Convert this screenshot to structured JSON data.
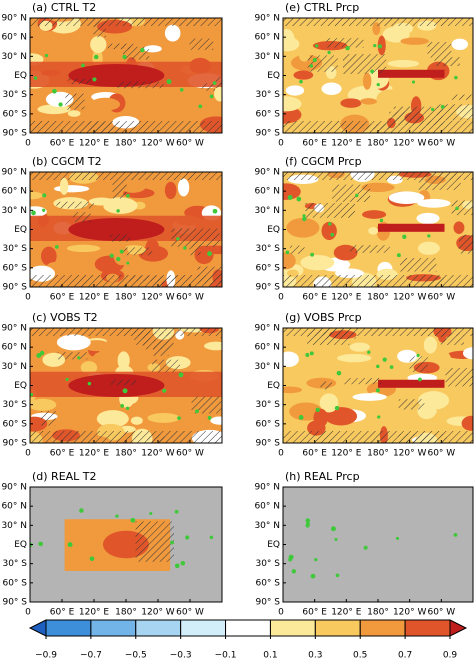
{
  "panels": [
    {
      "title": "(a) CTRL T2"
    },
    {
      "title": "(e) CTRL Prcp"
    },
    {
      "title": "(b) CGCM T2"
    },
    {
      "title": "(f) CGCM Prcp"
    },
    {
      "title": "(c) VOBS T2"
    },
    {
      "title": "(g) VOBS Prcp"
    },
    {
      "title": "(d) REAL T2"
    },
    {
      "title": "(h) REAL Prcp"
    }
  ],
  "lat_labels": [
    "90° N",
    "60° N",
    "30° N",
    "EQ",
    "30° S",
    "60° S",
    "90° S"
  ],
  "lon_labels": [
    "0",
    "60° E",
    "120° E",
    "180°",
    "120° W",
    "60° W"
  ],
  "colorbar": {
    "ticks": [
      {
        "value": -0.9,
        "label": "−0.9"
      },
      {
        "value": -0.7,
        "label": "−0.7"
      },
      {
        "value": -0.5,
        "label": "−0.5"
      },
      {
        "value": -0.3,
        "label": "−0.3"
      },
      {
        "value": -0.1,
        "label": "−0.1"
      },
      0.1,
      0.3,
      0.5,
      0.7,
      0.9
    ],
    "colors": [
      "#1f5fbf",
      "#3d8fd9",
      "#72b3e8",
      "#a6d4f1",
      "#d2eff9",
      "#ffffff",
      "#fde99a",
      "#f8c95f",
      "#f19a3d",
      "#e0562a",
      "#c01d1d"
    ]
  }
}
